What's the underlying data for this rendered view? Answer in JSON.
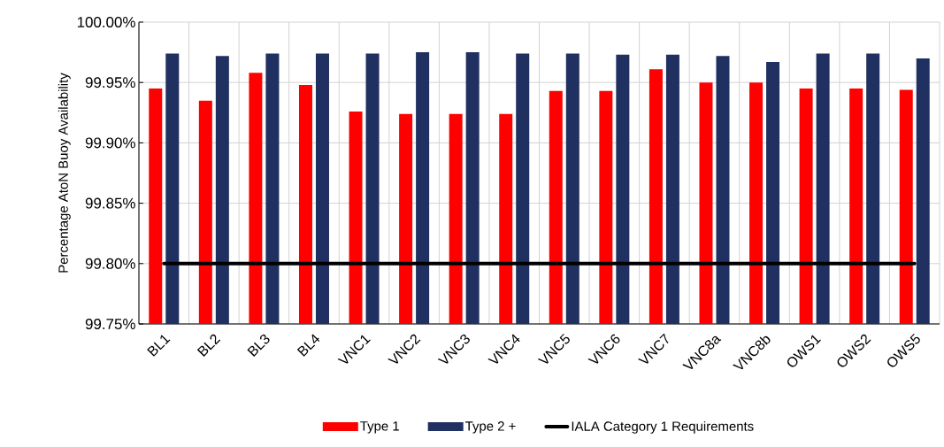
{
  "chart_data": {
    "type": "bar",
    "ylabel": "Percentage AtoN Buoy Availability",
    "categories": [
      "BL1",
      "BL2",
      "BL3",
      "BL4",
      "VNC1",
      "VNC2",
      "VNC3",
      "VNC4",
      "VNC5",
      "VNC6",
      "VNC7",
      "VNC8a",
      "VNC8b",
      "OWS1",
      "OWS2",
      "OWS5"
    ],
    "series": [
      {
        "name": "Type 1",
        "color": "#ff0000",
        "values": [
          99.945,
          99.935,
          99.958,
          99.948,
          99.926,
          99.924,
          99.924,
          99.924,
          99.943,
          99.943,
          99.961,
          99.95,
          99.95,
          99.945,
          99.945,
          99.944
        ]
      },
      {
        "name": "Type 2 +",
        "color": "#203060",
        "values": [
          99.974,
          99.972,
          99.974,
          99.974,
          99.974,
          99.975,
          99.975,
          99.974,
          99.974,
          99.973,
          99.973,
          99.972,
          99.967,
          99.974,
          99.974,
          99.97
        ]
      },
      {
        "name": "IALA Category 1 Requirements",
        "type": "line",
        "color": "#000000",
        "values": [
          99.8,
          99.8,
          99.8,
          99.8,
          99.8,
          99.8,
          99.8,
          99.8,
          99.8,
          99.8,
          99.8,
          99.8,
          99.8,
          99.8,
          99.8,
          99.8
        ]
      }
    ],
    "ylim": [
      99.75,
      100.0
    ],
    "yticks": [
      {
        "value": 99.75,
        "label": "99.75%"
      },
      {
        "value": 99.8,
        "label": "99.80%"
      },
      {
        "value": 99.85,
        "label": "99.85%"
      },
      {
        "value": 99.9,
        "label": "99.90%"
      },
      {
        "value": 99.95,
        "label": "99.95%"
      },
      {
        "value": 100.0,
        "label": "100.00%"
      }
    ],
    "grid": true,
    "legend": "bottom"
  }
}
